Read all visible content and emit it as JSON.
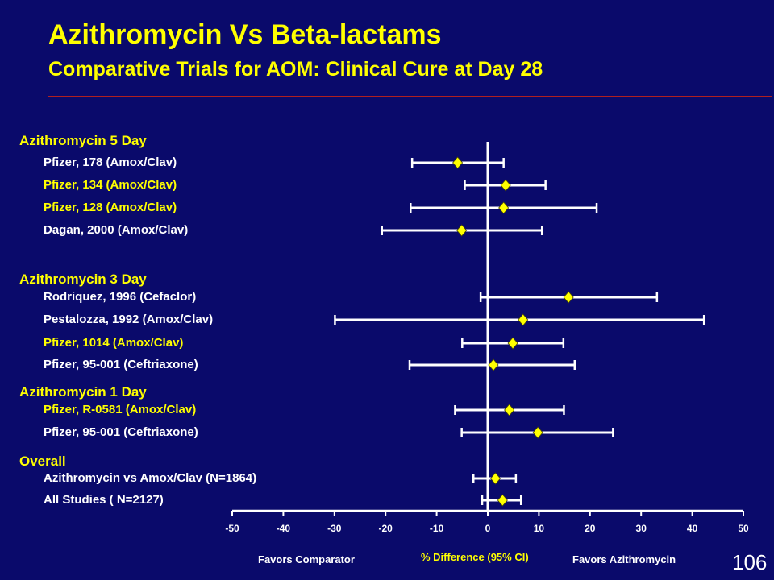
{
  "slide": {
    "title": "Azithromycin Vs Beta-lactams",
    "subtitle": "Comparative Trials for AOM: Clinical Cure at Day 28",
    "page_number": "106",
    "favors_left": "Favors Comparator",
    "favors_right": "Favors Azithromycin"
  },
  "colors": {
    "background": "#0a0a6b",
    "accent": "#ffff00",
    "line": "#ffffff",
    "rule": "#b02020"
  },
  "chart_data": {
    "type": "forest",
    "xlabel": "% Difference (95% CI)",
    "xlim": [
      -50,
      50
    ],
    "xticks": [
      -50,
      -40,
      -30,
      -20,
      -10,
      0,
      10,
      20,
      30,
      40,
      50
    ],
    "reference_line": 0,
    "groups": [
      {
        "label": "Azithromycin 5 Day",
        "studies": [
          {
            "label": "Pfizer, 178 (Amox/Clav)",
            "estimate": -5.9,
            "lower": -14.8,
            "upper": 3.1,
            "highlight": false
          },
          {
            "label": "Pfizer, 134 (Amox/Clav)",
            "estimate": 3.5,
            "lower": -4.5,
            "upper": 11.3,
            "highlight": true
          },
          {
            "label": "Pfizer, 128 (Amox/Clav)",
            "estimate": 3.1,
            "lower": -15.1,
            "upper": 21.3,
            "highlight": true
          },
          {
            "label": "Dagan, 2000 (Amox/Clav)",
            "estimate": -5.1,
            "lower": -20.7,
            "upper": 10.6,
            "highlight": false
          }
        ]
      },
      {
        "label": "Azithromycin 3 Day",
        "studies": [
          {
            "label": "Rodriquez, 1996 (Cefaclor)",
            "estimate": 15.8,
            "lower": -1.4,
            "upper": 33.1,
            "highlight": false
          },
          {
            "label": "Pestalozza, 1992 (Amox/Clav)",
            "estimate": 6.9,
            "lower": -29.9,
            "upper": 42.3,
            "highlight": false
          },
          {
            "label": "Pfizer, 1014 (Amox/Clav)",
            "estimate": 4.9,
            "lower": -5.0,
            "upper": 14.8,
            "highlight": true
          },
          {
            "label": "Pfizer, 95-001 (Ceftriaxone)",
            "estimate": 1.1,
            "lower": -15.3,
            "upper": 17.0,
            "highlight": false
          }
        ]
      },
      {
        "label": "Azithromycin 1 Day",
        "studies": [
          {
            "label": "Pfizer, R-0581 (Amox/Clav)",
            "estimate": 4.2,
            "lower": -6.4,
            "upper": 14.9,
            "highlight": true
          },
          {
            "label": "Pfizer, 95-001 (Ceftriaxone)",
            "estimate": 9.8,
            "lower": -5.1,
            "upper": 24.5,
            "highlight": false
          }
        ]
      },
      {
        "label": "Overall",
        "studies": [
          {
            "label": "Azithromycin vs Amox/Clav (N=1864)",
            "estimate": 1.5,
            "lower": -2.8,
            "upper": 5.5,
            "highlight": false
          },
          {
            "label": "All Studies ( N=2127)",
            "estimate": 2.9,
            "lower": -1.1,
            "upper": 6.5,
            "highlight": false
          }
        ]
      }
    ]
  }
}
